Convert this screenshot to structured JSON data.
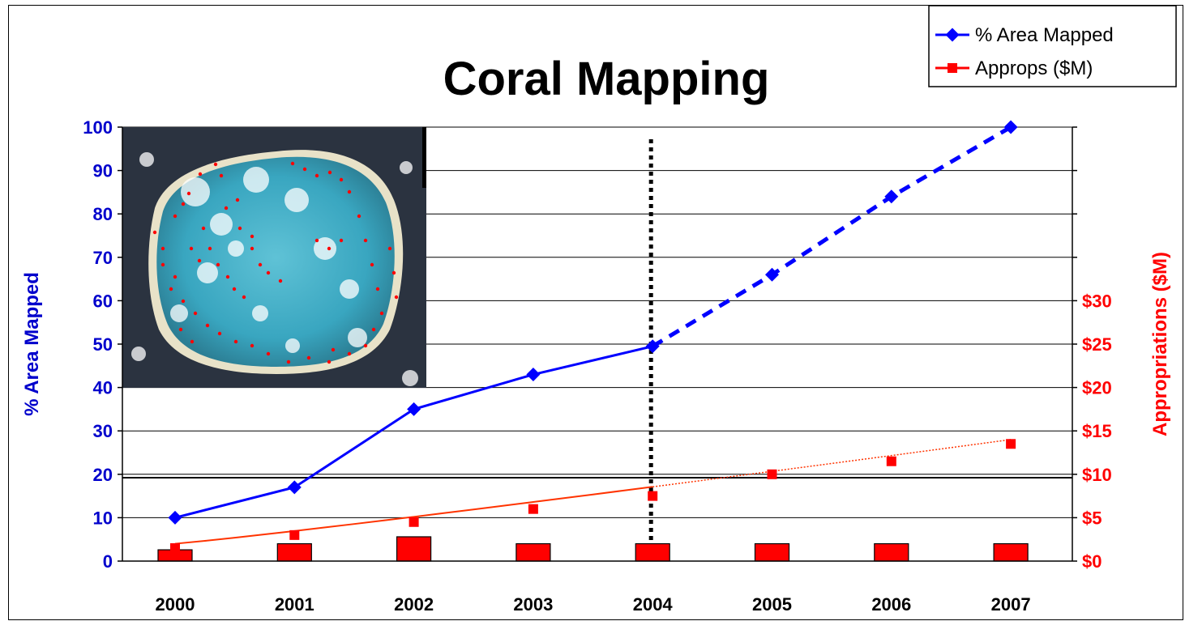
{
  "chart_data": {
    "type": "line",
    "title": "Coral Mapping",
    "categories": [
      "2000",
      "2001",
      "2002",
      "2003",
      "2004",
      "2005",
      "2006",
      "2007"
    ],
    "y_left": {
      "label": "% Area Mapped",
      "ticks": [
        "0",
        "10",
        "20",
        "30",
        "40",
        "50",
        "60",
        "70",
        "80",
        "90",
        "100"
      ],
      "range": [
        0,
        100
      ]
    },
    "y_right": {
      "label": "Appropriations ($M)",
      "ticks": [
        "$0",
        "$5",
        "$10",
        "$15",
        "$20",
        "$25",
        "$30"
      ],
      "range": [
        0,
        50
      ]
    },
    "series": [
      {
        "name": "% Area Mapped",
        "axis": "left",
        "color": "#0000ff",
        "marker": "diamond",
        "values": [
          10,
          17,
          35,
          43,
          49.5,
          66,
          84,
          100
        ],
        "projected_from_index": 4
      },
      {
        "name": "Approps ($M)",
        "axis": "right",
        "color": "#ff0000",
        "marker": "square",
        "values": [
          1.5,
          3,
          4.5,
          6,
          7.5,
          10,
          11.5,
          13.5
        ],
        "trendline": {
          "color": "#ff3300",
          "start": 2,
          "end": 14
        }
      }
    ],
    "bars": {
      "axis": "right",
      "color": "#ff0000",
      "values": [
        1.3,
        2,
        2.8,
        2,
        2,
        2,
        2,
        2
      ]
    },
    "divider_category": "2004",
    "legend_position": "top-right",
    "inset_image": "satellite image of coral atoll with red survey points"
  }
}
